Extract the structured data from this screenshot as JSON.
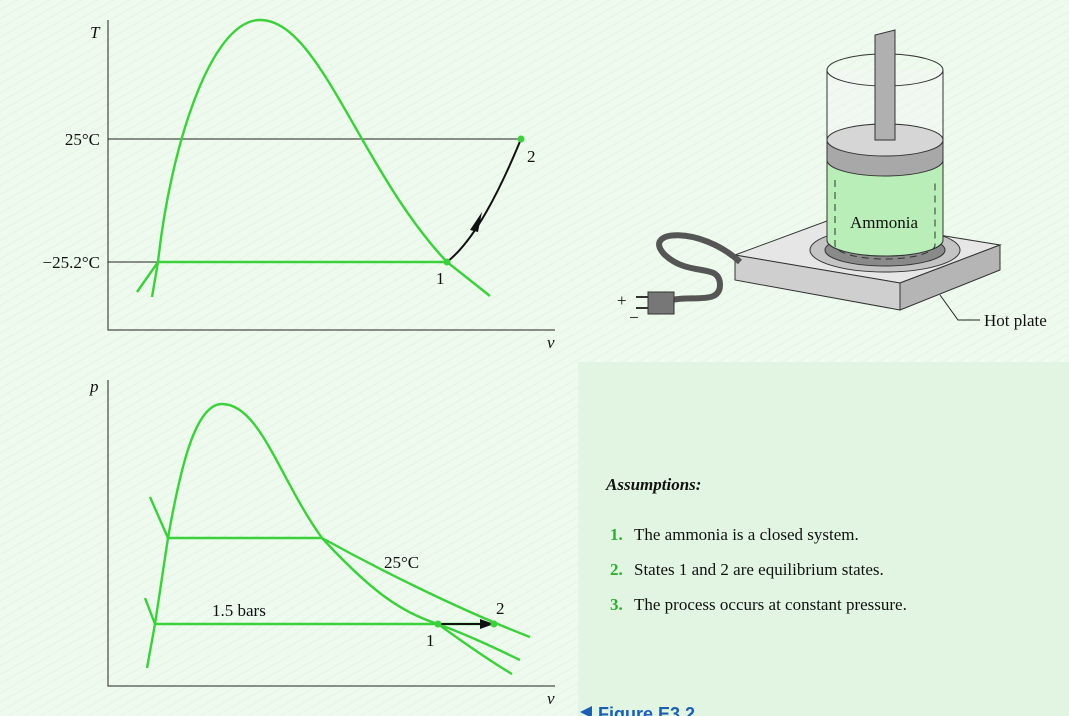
{
  "tv_diagram": {
    "y_axis_label": "T",
    "x_axis_label": "v",
    "isotherm_labels": [
      "25°C",
      "−25.2°C"
    ],
    "state_labels": [
      "1",
      "2"
    ]
  },
  "pv_diagram": {
    "y_axis_label": "p",
    "x_axis_label": "v",
    "isotherm_label": "25°C",
    "isobar_label": "1.5 bars",
    "state_labels": [
      "1",
      "2"
    ]
  },
  "apparatus": {
    "fluid_label": "Ammonia",
    "plug_labels": [
      "+",
      "−"
    ],
    "hot_plate_label": "Hot plate"
  },
  "assumptions": {
    "heading": "Assumptions:",
    "items": [
      {
        "number": "1.",
        "text": "The ammonia is a closed system."
      },
      {
        "number": "2.",
        "text": "States 1 and 2 are equilibrium states."
      },
      {
        "number": "3.",
        "text": "The process occurs at constant pressure."
      }
    ]
  },
  "figure_caption": "Figure E3.2"
}
